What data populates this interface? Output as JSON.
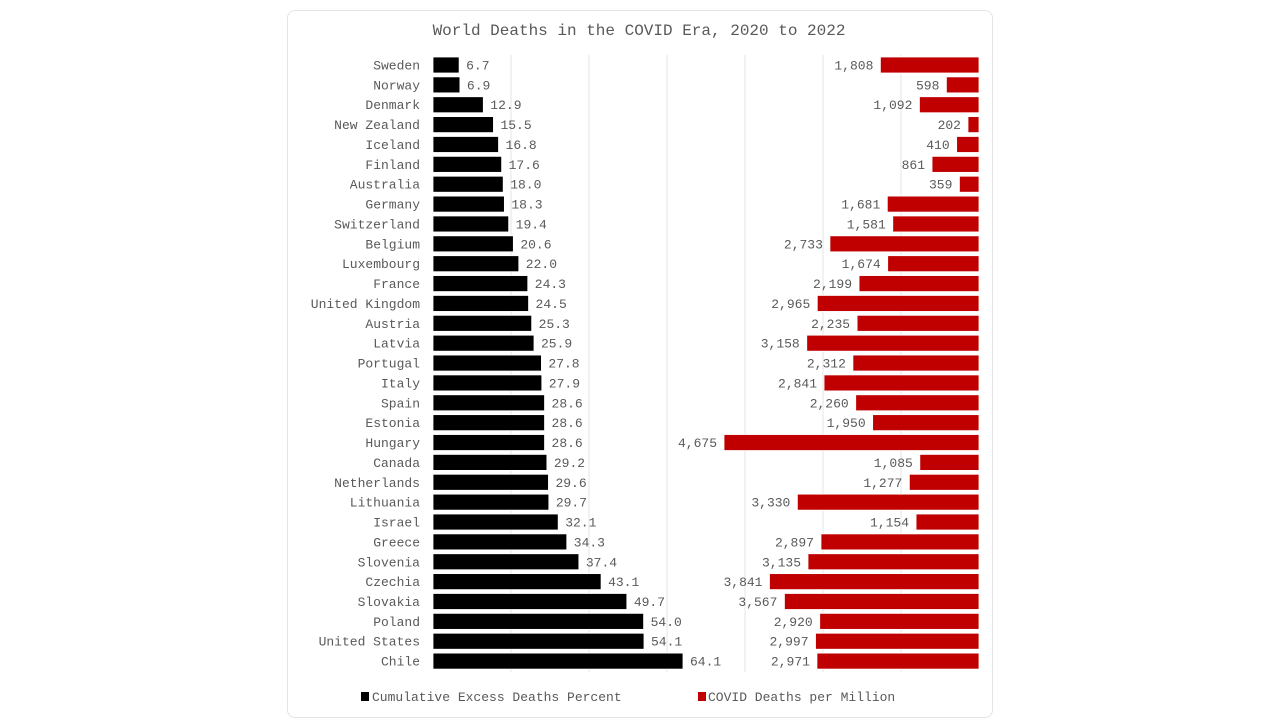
{
  "chart_data": {
    "type": "bar",
    "title": "World Deaths in the COVID Era, 2020 to 2022",
    "orientation": "horizontal",
    "categories": [
      "Sweden",
      "Norway",
      "Denmark",
      "New Zealand",
      "Iceland",
      "Finland",
      "Australia",
      "Germany",
      "Switzerland",
      "Belgium",
      "Luxembourg",
      "France",
      "United Kingdom",
      "Austria",
      "Latvia",
      "Portugal",
      "Italy",
      "Spain",
      "Estonia",
      "Hungary",
      "Canada",
      "Netherlands",
      "Lithuania",
      "Israel",
      "Greece",
      "Slovenia",
      "Czechia",
      "Slovakia",
      "Poland",
      "United States",
      "Chile"
    ],
    "series": [
      {
        "name": "Cumulative Excess Deaths Percent",
        "color": "#000000",
        "values": [
          6.7,
          6.9,
          12.9,
          15.5,
          16.8,
          17.6,
          18.0,
          18.3,
          19.4,
          20.6,
          22.0,
          24.3,
          24.5,
          25.3,
          25.9,
          27.8,
          27.9,
          28.6,
          28.6,
          28.6,
          29.2,
          29.6,
          29.7,
          32.1,
          34.3,
          37.4,
          43.1,
          49.7,
          54.0,
          54.1,
          64.1
        ],
        "labels": [
          "6.7",
          "6.9",
          "12.9",
          "15.5",
          "16.8",
          "17.6",
          "18.0",
          "18.3",
          "19.4",
          "20.6",
          "22.0",
          "24.3",
          "24.5",
          "25.3",
          "25.9",
          "27.8",
          "27.9",
          "28.6",
          "28.6",
          "28.6",
          "29.2",
          "29.6",
          "29.7",
          "32.1",
          "34.3",
          "37.4",
          "43.1",
          "49.7",
          "54.0",
          "54.1",
          "64.1"
        ]
      },
      {
        "name": "COVID Deaths per Million",
        "color": "#c00000",
        "values": [
          1808,
          598,
          1092,
          202,
          410,
          861,
          359,
          1681,
          1581,
          2733,
          1674,
          2199,
          2965,
          2235,
          3158,
          2312,
          2841,
          2260,
          1950,
          4675,
          1085,
          1277,
          3330,
          1154,
          2897,
          3135,
          3841,
          3567,
          2920,
          2997,
          2971
        ],
        "labels": [
          "1,808",
          "598",
          "1,092",
          "202",
          "410",
          "861",
          "359",
          "1,681",
          "1,581",
          "2,733",
          "1,674",
          "2,199",
          "2,965",
          "2,235",
          "3,158",
          "2,312",
          "2,841",
          "2,260",
          "1,950",
          "4,675",
          "1,085",
          "1,277",
          "3,330",
          "1,154",
          "2,897",
          "3,135",
          "3,841",
          "3,567",
          "2,920",
          "2,997",
          "2,971"
        ]
      }
    ],
    "legend_position": "bottom",
    "grid": true
  }
}
